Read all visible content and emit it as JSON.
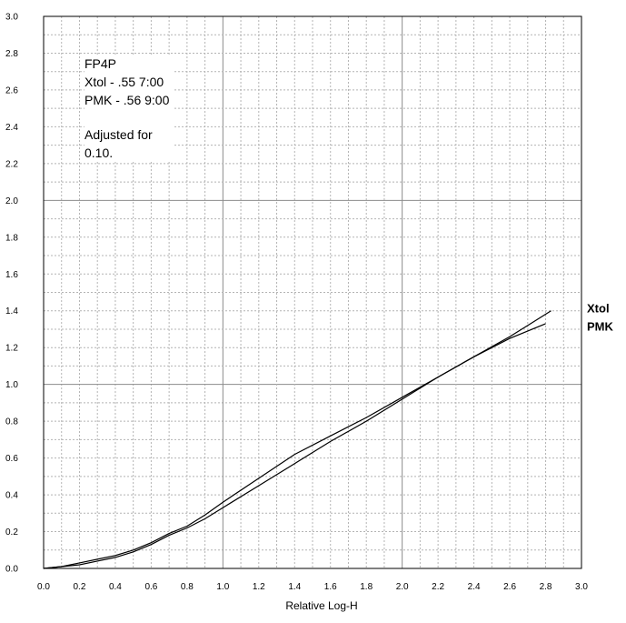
{
  "chart_data": {
    "type": "line",
    "title": "",
    "xlabel": "Relative Log-H",
    "ylabel": "",
    "xlim": [
      0.0,
      3.0
    ],
    "ylim": [
      0.0,
      3.0
    ],
    "xticks": [
      "0.0",
      "0.2",
      "0.4",
      "0.6",
      "0.8",
      "1.0",
      "1.2",
      "1.4",
      "1.6",
      "1.8",
      "2.0",
      "2.2",
      "2.4",
      "2.6",
      "2.8",
      "3.0"
    ],
    "yticks": [
      "0.0",
      "0.2",
      "0.4",
      "0.6",
      "0.8",
      "1.0",
      "1.2",
      "1.4",
      "1.6",
      "1.8",
      "2.0",
      "2.2",
      "2.4",
      "2.6",
      "2.8",
      "3.0"
    ],
    "grid": true,
    "series": [
      {
        "name": "Xtol",
        "x": [
          0.0,
          0.1,
          0.2,
          0.3,
          0.4,
          0.5,
          0.6,
          0.7,
          0.8,
          0.9,
          1.0,
          1.2,
          1.4,
          1.6,
          1.8,
          2.0,
          2.2,
          2.4,
          2.6,
          2.7,
          2.83
        ],
        "y": [
          0.0,
          0.01,
          0.02,
          0.04,
          0.06,
          0.09,
          0.13,
          0.18,
          0.22,
          0.27,
          0.33,
          0.45,
          0.57,
          0.69,
          0.8,
          0.92,
          1.04,
          1.15,
          1.26,
          1.32,
          1.4
        ]
      },
      {
        "name": "PMK",
        "x": [
          0.0,
          0.1,
          0.2,
          0.3,
          0.4,
          0.5,
          0.6,
          0.7,
          0.8,
          0.9,
          1.0,
          1.2,
          1.4,
          1.6,
          1.8,
          2.0,
          2.2,
          2.4,
          2.6,
          2.8
        ],
        "y": [
          0.0,
          0.01,
          0.03,
          0.05,
          0.07,
          0.1,
          0.14,
          0.19,
          0.23,
          0.29,
          0.36,
          0.49,
          0.62,
          0.72,
          0.82,
          0.93,
          1.04,
          1.15,
          1.25,
          1.33
        ]
      }
    ],
    "legend": {
      "entries": [
        "Xtol",
        "PMK"
      ],
      "placement": "right"
    },
    "annotation": {
      "lines": [
        "FP4P",
        "Xtol - .55 7:00",
        "PMK - .56 9:00",
        "",
        "Adjusted for",
        "0.10."
      ]
    }
  },
  "colors": {
    "grid_major": "#8c8c8c",
    "grid_minor": "#b4b4b4",
    "line": "#000000",
    "frame": "#000000"
  }
}
